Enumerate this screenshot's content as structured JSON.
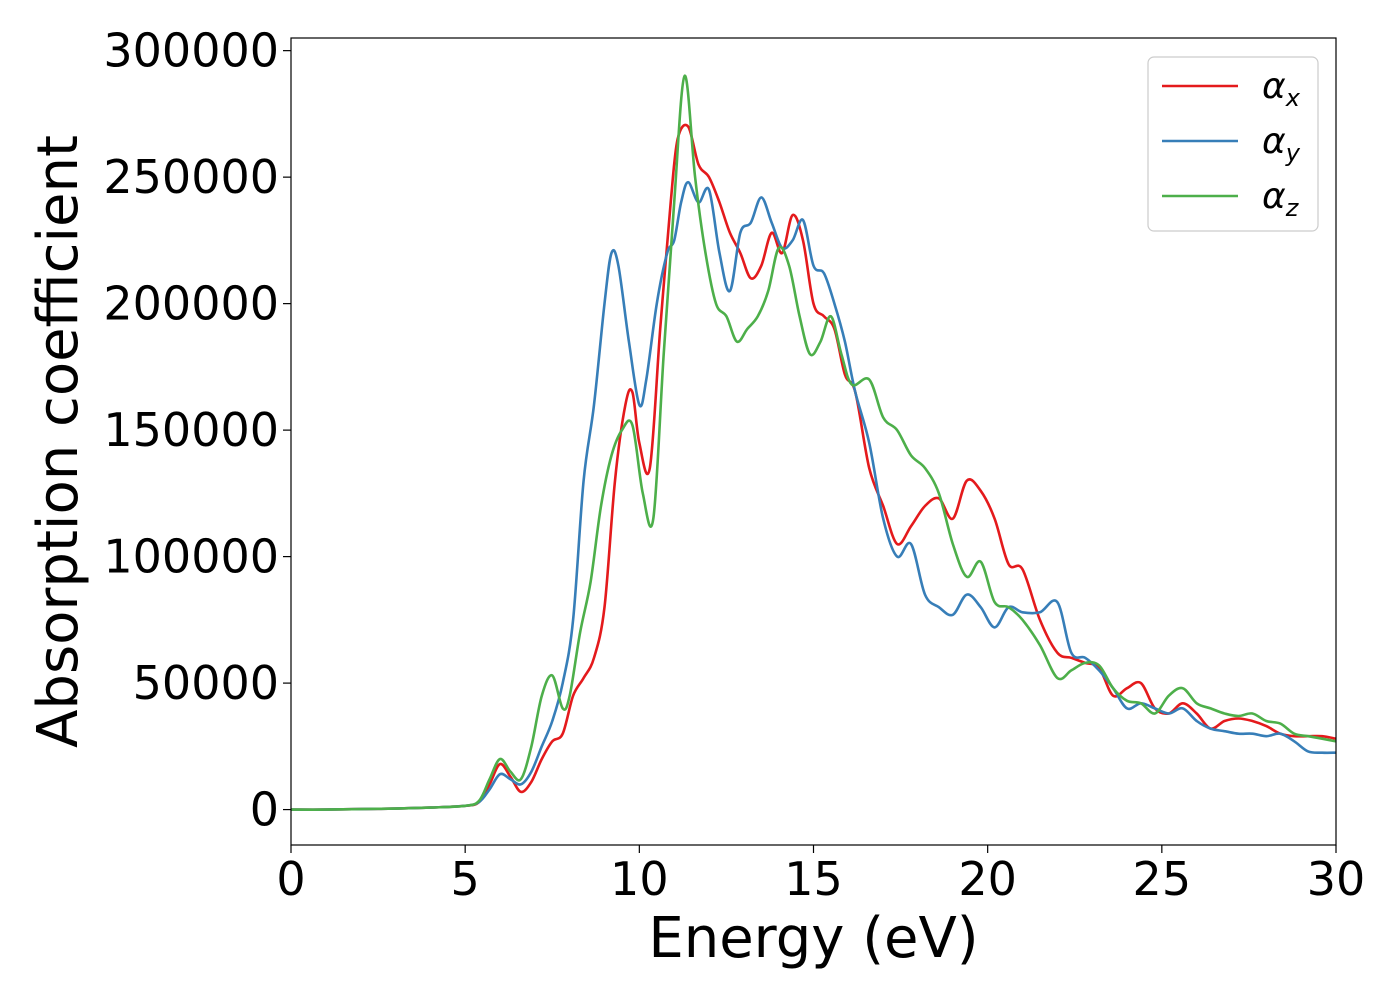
{
  "chart_data": {
    "type": "line",
    "title": "",
    "xlabel": "Energy (eV)",
    "ylabel": "Absorption coefficient",
    "xlim": [
      0,
      30
    ],
    "ylim": [
      -14000,
      305000
    ],
    "xticks": [
      0,
      5,
      10,
      15,
      20,
      25,
      30
    ],
    "yticks": [
      0,
      50000,
      100000,
      150000,
      200000,
      250000,
      300000
    ],
    "grid": false,
    "legend": "top-right",
    "series": [
      {
        "name": "αx",
        "symbol": "α",
        "subscript": "x",
        "color": "#e41a1c",
        "x": [
          0,
          1,
          2,
          3,
          4,
          5,
          5.4,
          5.7,
          6.0,
          6.3,
          6.6,
          6.9,
          7.2,
          7.5,
          7.8,
          8.1,
          8.4,
          8.7,
          9.0,
          9.3,
          9.6,
          9.8,
          10.0,
          10.3,
          10.6,
          10.9,
          11.1,
          11.4,
          11.7,
          12.0,
          12.3,
          12.6,
          12.9,
          13.2,
          13.5,
          13.8,
          14.1,
          14.4,
          14.7,
          15.0,
          15.3,
          15.6,
          15.9,
          16.2,
          16.6,
          17.0,
          17.4,
          17.8,
          18.2,
          18.6,
          19.0,
          19.4,
          19.8,
          20.2,
          20.6,
          21.0,
          21.5,
          22.0,
          22.4,
          22.8,
          23.2,
          23.6,
          24.0,
          24.4,
          24.8,
          25.2,
          25.6,
          26.0,
          26.4,
          26.8,
          27.2,
          27.6,
          28.0,
          28.4,
          28.8,
          29.2,
          29.6,
          30
        ],
        "y": [
          0,
          0,
          200,
          400,
          800,
          1500,
          3000,
          10000,
          18000,
          13000,
          7000,
          11000,
          20000,
          27000,
          30000,
          45000,
          52000,
          60000,
          80000,
          130000,
          160000,
          165000,
          145000,
          135000,
          190000,
          240000,
          265000,
          270000,
          255000,
          250000,
          240000,
          228000,
          220000,
          210000,
          215000,
          228000,
          220000,
          235000,
          225000,
          200000,
          195000,
          190000,
          172000,
          165000,
          135000,
          120000,
          105000,
          112000,
          120000,
          123000,
          115000,
          130000,
          126000,
          115000,
          97000,
          95000,
          75000,
          62000,
          60000,
          58000,
          56000,
          45000,
          48000,
          50000,
          40000,
          38000,
          42000,
          38000,
          32000,
          35000,
          36000,
          35000,
          33000,
          30000,
          29000,
          29000,
          29000,
          28000
        ]
      },
      {
        "name": "αy",
        "symbol": "α",
        "subscript": "y",
        "color": "#377eb8",
        "x": [
          0,
          1,
          2,
          3,
          4,
          5,
          5.4,
          5.7,
          6.0,
          6.3,
          6.6,
          6.9,
          7.2,
          7.5,
          7.8,
          8.1,
          8.4,
          8.7,
          9.0,
          9.2,
          9.4,
          9.7,
          10.0,
          10.2,
          10.5,
          10.8,
          11.0,
          11.2,
          11.4,
          11.7,
          12.0,
          12.3,
          12.6,
          12.9,
          13.2,
          13.5,
          13.8,
          14.1,
          14.4,
          14.7,
          15.0,
          15.3,
          15.6,
          15.9,
          16.2,
          16.6,
          17.0,
          17.4,
          17.8,
          18.2,
          18.6,
          19.0,
          19.4,
          19.8,
          20.2,
          20.6,
          21.0,
          21.5,
          22.0,
          22.4,
          22.8,
          23.2,
          23.6,
          24.0,
          24.4,
          24.8,
          25.2,
          25.6,
          26.0,
          26.4,
          26.8,
          27.2,
          27.6,
          28.0,
          28.4,
          28.8,
          29.2,
          29.6,
          30
        ],
        "y": [
          0,
          0,
          200,
          400,
          800,
          1500,
          3000,
          8000,
          14000,
          12000,
          10000,
          15000,
          25000,
          35000,
          50000,
          75000,
          130000,
          160000,
          200000,
          220000,
          215000,
          185000,
          160000,
          170000,
          200000,
          220000,
          225000,
          240000,
          248000,
          240000,
          245000,
          220000,
          205000,
          228000,
          232000,
          242000,
          232000,
          222000,
          225000,
          233000,
          215000,
          212000,
          200000,
          185000,
          165000,
          145000,
          115000,
          100000,
          105000,
          85000,
          80000,
          77000,
          85000,
          80000,
          72000,
          80000,
          78000,
          78000,
          82000,
          62000,
          60000,
          55000,
          48000,
          40000,
          42000,
          40000,
          38000,
          40000,
          35000,
          32000,
          31000,
          30000,
          30000,
          29000,
          30000,
          27000,
          23000,
          22500,
          22500
        ]
      },
      {
        "name": "αz",
        "symbol": "α",
        "subscript": "z",
        "color": "#4daf4a",
        "x": [
          0,
          1,
          2,
          3,
          4,
          5,
          5.4,
          5.7,
          6.0,
          6.3,
          6.6,
          6.9,
          7.2,
          7.5,
          7.8,
          8.0,
          8.3,
          8.6,
          8.9,
          9.2,
          9.5,
          9.8,
          10.1,
          10.4,
          10.7,
          11.0,
          11.3,
          11.6,
          11.9,
          12.2,
          12.5,
          12.8,
          13.1,
          13.4,
          13.7,
          14.0,
          14.3,
          14.6,
          14.9,
          15.2,
          15.5,
          15.8,
          16.1,
          16.6,
          17.0,
          17.4,
          17.8,
          18.2,
          18.6,
          19.0,
          19.4,
          19.8,
          20.2,
          20.6,
          21.0,
          21.5,
          22.0,
          22.4,
          22.8,
          23.2,
          23.6,
          24.0,
          24.4,
          24.8,
          25.2,
          25.6,
          26.0,
          26.4,
          26.8,
          27.2,
          27.6,
          28.0,
          28.4,
          28.8,
          29.2,
          29.6,
          30
        ],
        "y": [
          0,
          0,
          200,
          400,
          800,
          1500,
          3500,
          12000,
          20000,
          15000,
          12000,
          25000,
          45000,
          53000,
          40000,
          45000,
          70000,
          90000,
          120000,
          140000,
          150000,
          152000,
          125000,
          115000,
          180000,
          240000,
          290000,
          250000,
          220000,
          200000,
          195000,
          185000,
          190000,
          195000,
          205000,
          222000,
          215000,
          195000,
          180000,
          185000,
          195000,
          180000,
          168000,
          170000,
          155000,
          150000,
          140000,
          135000,
          125000,
          105000,
          92000,
          98000,
          82000,
          80000,
          75000,
          65000,
          52000,
          55000,
          58000,
          57000,
          48000,
          43000,
          42000,
          38000,
          45000,
          48000,
          42000,
          40000,
          38000,
          37000,
          38000,
          35000,
          34000,
          30000,
          29000,
          28000,
          27000
        ]
      }
    ]
  }
}
